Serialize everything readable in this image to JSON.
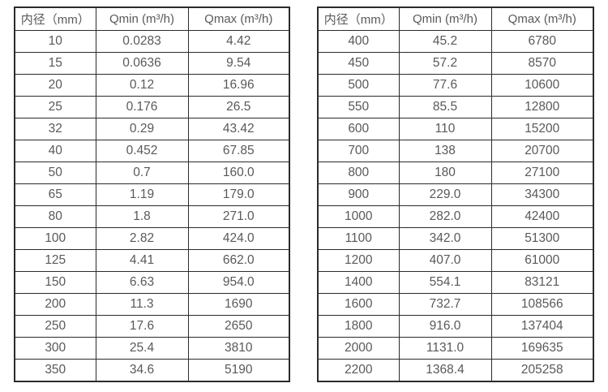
{
  "page": {
    "background_color": "#ffffff",
    "text_color": "#595959",
    "border_color": "#2b2b2b"
  },
  "tables": [
    {
      "name": "flow-rate-table-small-diameters",
      "headers": [
        "内径（mm）",
        "Qmin (m³/h)",
        "Qmax (m³/h)"
      ],
      "rows": [
        [
          "10",
          "0.0283",
          "4.42"
        ],
        [
          "15",
          "0.0636",
          "9.54"
        ],
        [
          "20",
          "0.12",
          "16.96"
        ],
        [
          "25",
          "0.176",
          "26.5"
        ],
        [
          "32",
          "0.29",
          "43.42"
        ],
        [
          "40",
          "0.452",
          "67.85"
        ],
        [
          "50",
          "0.7",
          "160.0"
        ],
        [
          "65",
          "1.19",
          "179.0"
        ],
        [
          "80",
          "1.8",
          "271.0"
        ],
        [
          "100",
          "2.82",
          "424.0"
        ],
        [
          "125",
          "4.41",
          "662.0"
        ],
        [
          "150",
          "6.63",
          "954.0"
        ],
        [
          "200",
          "11.3",
          "1690"
        ],
        [
          "250",
          "17.6",
          "2650"
        ],
        [
          "300",
          "25.4",
          "3810"
        ],
        [
          "350",
          "34.6",
          "5190"
        ]
      ]
    },
    {
      "name": "flow-rate-table-large-diameters",
      "headers": [
        "内径（mm）",
        "Qmin (m³/h)",
        "Qmax (m³/h)"
      ],
      "rows": [
        [
          "400",
          "45.2",
          "6780"
        ],
        [
          "450",
          "57.2",
          "8570"
        ],
        [
          "500",
          "77.6",
          "10600"
        ],
        [
          "550",
          "85.5",
          "12800"
        ],
        [
          "600",
          "110",
          "15200"
        ],
        [
          "700",
          "138",
          "20700"
        ],
        [
          "800",
          "180",
          "27100"
        ],
        [
          "900",
          "229.0",
          "34300"
        ],
        [
          "1000",
          "282.0",
          "42400"
        ],
        [
          "1100",
          "342.0",
          "51300"
        ],
        [
          "1200",
          "407.0",
          "61000"
        ],
        [
          "1400",
          "554.1",
          "83121"
        ],
        [
          "1600",
          "732.7",
          "108566"
        ],
        [
          "1800",
          "916.0",
          "137404"
        ],
        [
          "2000",
          "1131.0",
          "169635"
        ],
        [
          "2200",
          "1368.4",
          "205258"
        ]
      ]
    }
  ]
}
